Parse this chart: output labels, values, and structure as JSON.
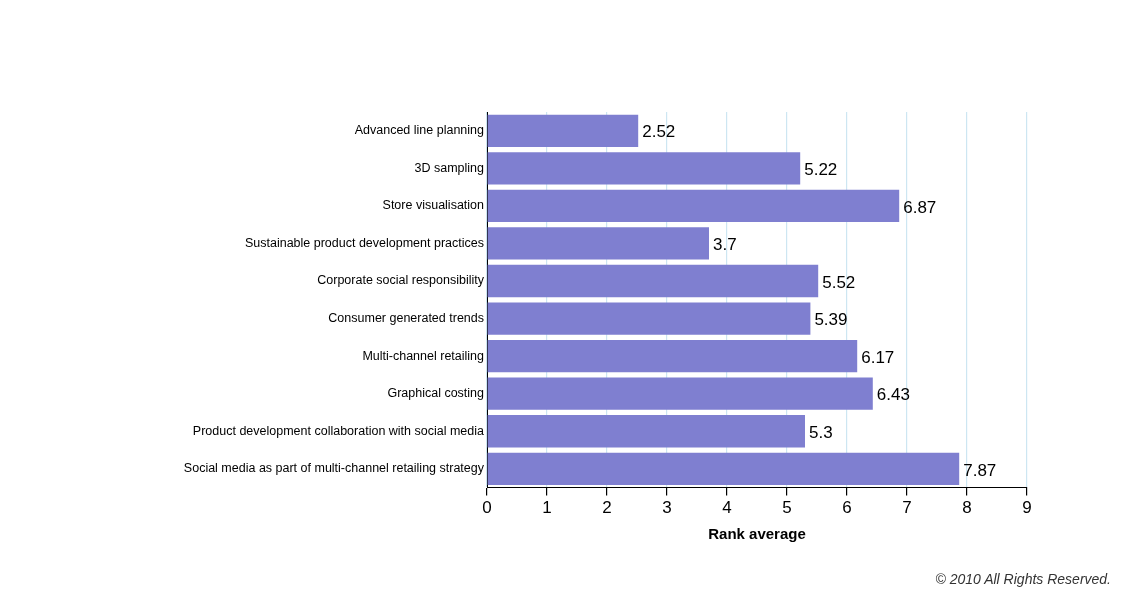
{
  "chart_data": {
    "type": "bar",
    "orientation": "horizontal",
    "xlabel": "Rank average",
    "categories": [
      "Advanced line planning",
      "3D sampling",
      "Store visualisation",
      "Sustainable product development practices",
      "Corporate social responsibility",
      "Consumer generated trends",
      "Multi-channel retailing",
      "Graphical costing",
      "Product development collaboration with social media",
      "Social media as part of multi-channel retailing strategy"
    ],
    "values": [
      2.52,
      5.22,
      6.87,
      3.7,
      5.52,
      5.39,
      6.17,
      6.43,
      5.3,
      7.87
    ],
    "color": "#7f7fd0",
    "xlim": [
      0,
      9
    ],
    "xticks": [
      0,
      1,
      2,
      3,
      4,
      5,
      6,
      7,
      8,
      9
    ],
    "grid": "x",
    "legend": false,
    "data_labels": true,
    "annotations": [
      "© 2010 All Rights Reserved."
    ]
  }
}
